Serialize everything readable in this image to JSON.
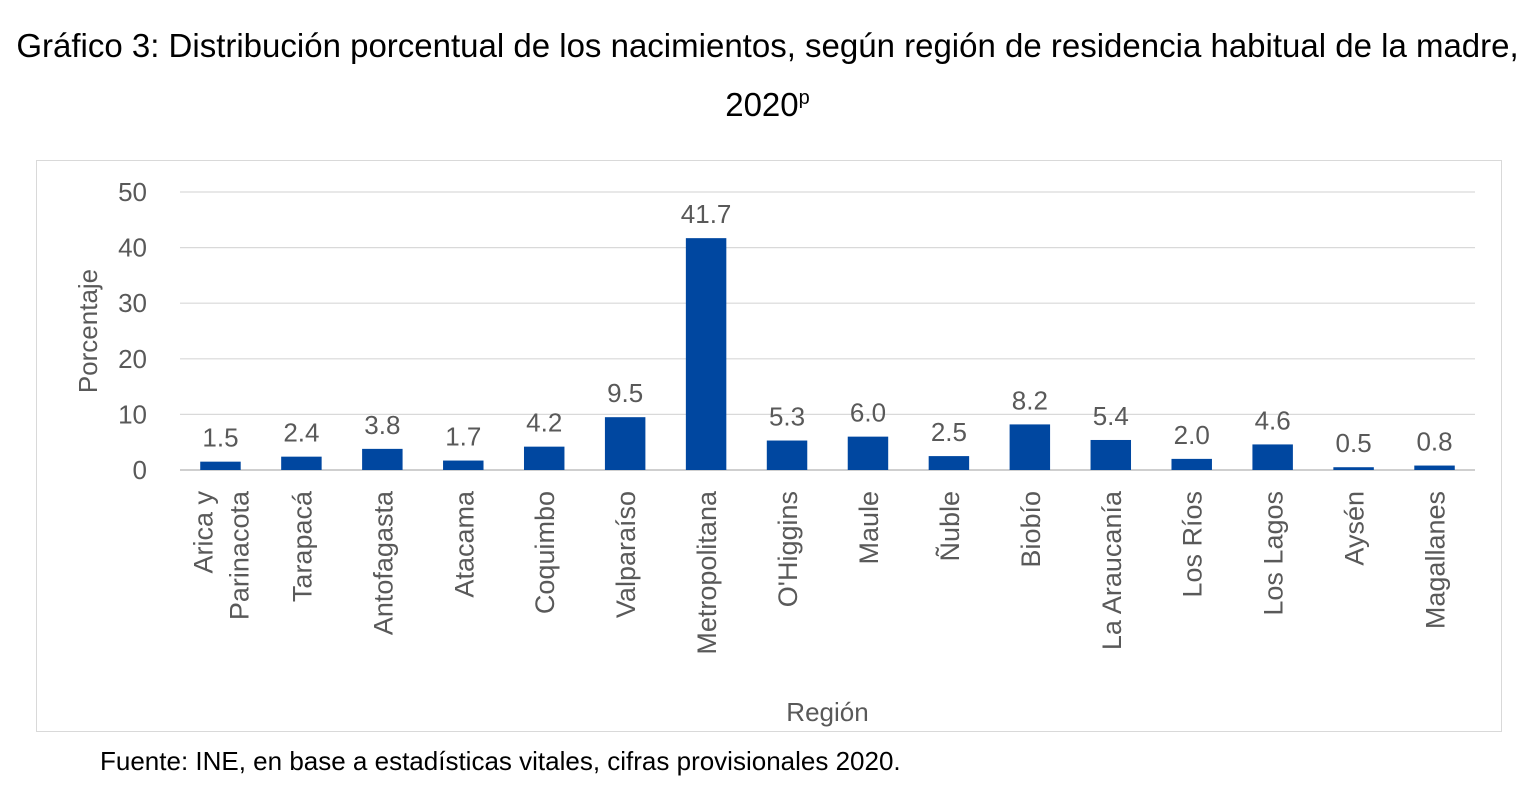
{
  "title_main": "Gráfico 3: Distribución porcentual de los nacimientos, según región de residencia habitual de la madre, 2020",
  "title_sup": "p",
  "source": "Fuente: INE, en base a estadísticas vitales, cifras provisionales 2020.",
  "chart_data": {
    "type": "bar",
    "title": "",
    "xlabel": "Región",
    "ylabel": "Porcentaje",
    "ylim": [
      0,
      50
    ],
    "yticks": [
      0,
      10,
      20,
      30,
      40,
      50
    ],
    "grid": true,
    "bar_color": "#0047a0",
    "categories": [
      "Arica y Parinacota",
      "Tarapacá",
      "Antofagasta",
      "Atacama",
      "Coquimbo",
      "Valparaíso",
      "Metropolitana",
      "O'Higgins",
      "Maule",
      "Ñuble",
      "Biobío",
      "La Araucanía",
      "Los Ríos",
      "Los Lagos",
      "Aysén",
      "Magallanes"
    ],
    "category_lines": [
      [
        "Arica y",
        "Parinacota"
      ],
      [
        "Tarapacá"
      ],
      [
        "Antofagasta"
      ],
      [
        "Atacama"
      ],
      [
        "Coquimbo"
      ],
      [
        "Valparaíso"
      ],
      [
        "Metropolitana"
      ],
      [
        "O'Higgins"
      ],
      [
        "Maule"
      ],
      [
        "Ñuble"
      ],
      [
        "Biobío"
      ],
      [
        "La Araucanía"
      ],
      [
        "Los Ríos"
      ],
      [
        "Los Lagos"
      ],
      [
        "Aysén"
      ],
      [
        "Magallanes"
      ]
    ],
    "values": [
      1.5,
      2.4,
      3.8,
      1.7,
      4.2,
      9.5,
      41.7,
      5.3,
      6.0,
      2.5,
      8.2,
      5.4,
      2.0,
      4.6,
      0.5,
      0.8
    ],
    "data_labels": [
      "1.5",
      "2.4",
      "3.8",
      "1.7",
      "4.2",
      "9.5",
      "41.7",
      "5.3",
      "6.0",
      "2.5",
      "8.2",
      "5.4",
      "2.0",
      "4.6",
      "0.5",
      "0.8"
    ]
  }
}
